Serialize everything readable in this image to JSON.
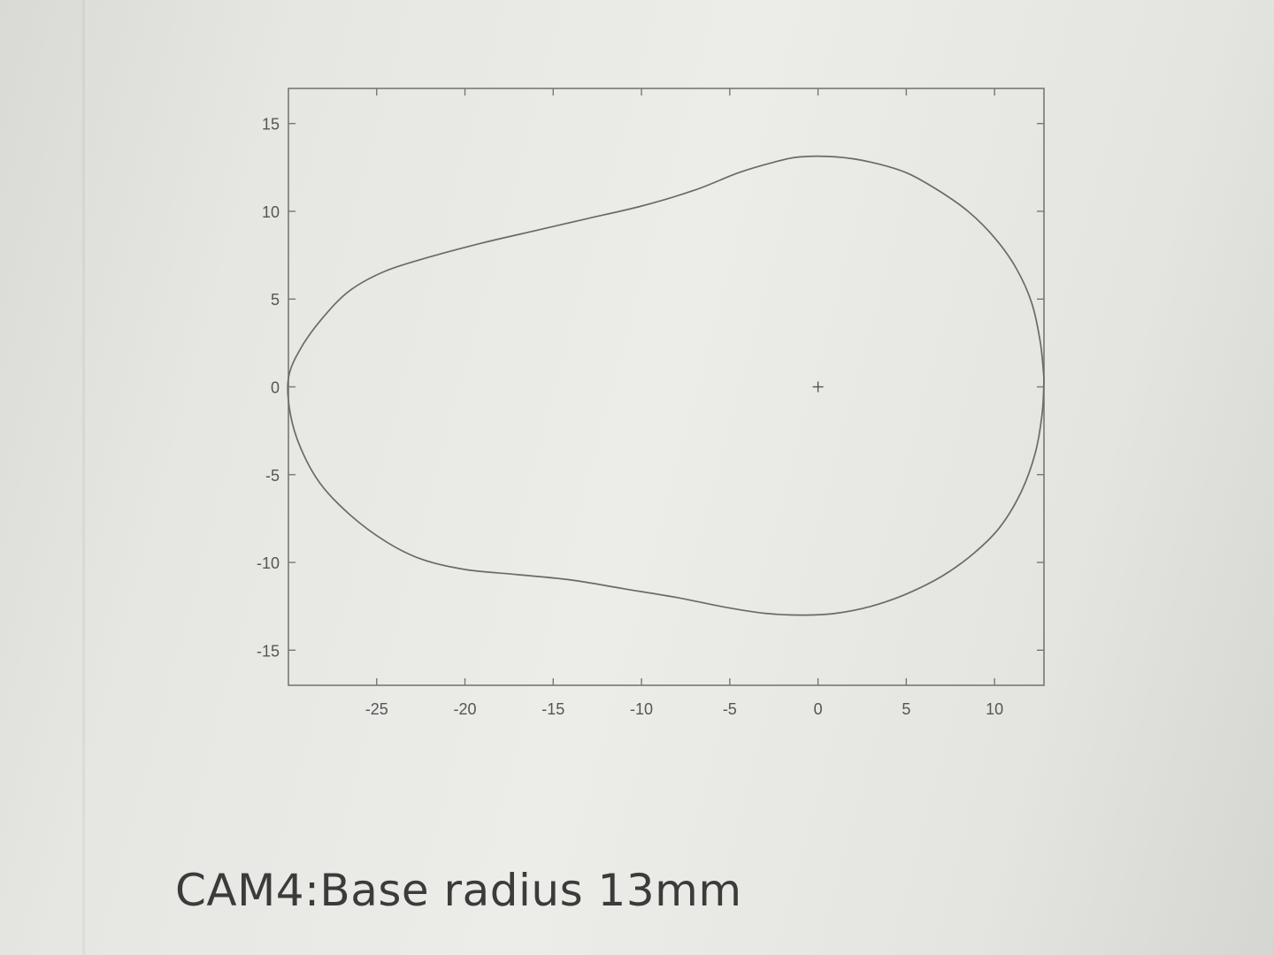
{
  "caption": "CAM4:Base radius 13mm",
  "chart_data": {
    "type": "line",
    "title": "",
    "xlabel": "",
    "ylabel": "",
    "xlim": [
      -30,
      12.8
    ],
    "ylim": [
      -17,
      17
    ],
    "xticks": [
      -25,
      -20,
      -15,
      -10,
      -5,
      0,
      5,
      10
    ],
    "yticks": [
      15,
      10,
      5,
      0,
      -5,
      -10,
      -15
    ],
    "grid": false,
    "center_marker": {
      "x": 0,
      "y": 0,
      "symbol": "+"
    },
    "series": [
      {
        "color": "#6a6a6a",
        "x": [
          12.8,
          12.6,
          12.1,
          11.2,
          10.0,
          8.5,
          6.8,
          5.0,
          3.0,
          1.0,
          -1.0,
          -2.5,
          -4.5,
          -7.0,
          -10.0,
          -13.0,
          -16.0,
          -19.0,
          -22.0,
          -24.5,
          -26.5,
          -28.0,
          -29.3,
          -30.0,
          -29.9,
          -29.3,
          -28.2,
          -26.5,
          -24.5,
          -22.5,
          -20.0,
          -17.0,
          -14.0,
          -11.0,
          -8.0,
          -5.0,
          -3.0,
          -1.0,
          1.0,
          3.0,
          5.0,
          7.0,
          8.8,
          10.3,
          11.5,
          12.3,
          12.7,
          12.8
        ],
        "y": [
          0.5,
          2.5,
          4.8,
          6.8,
          8.5,
          10.0,
          11.2,
          12.2,
          12.8,
          13.1,
          13.1,
          12.8,
          12.2,
          11.2,
          10.3,
          9.6,
          8.9,
          8.2,
          7.4,
          6.6,
          5.5,
          4.0,
          2.2,
          0.5,
          -1.5,
          -3.5,
          -5.5,
          -7.3,
          -8.8,
          -9.8,
          -10.4,
          -10.7,
          -11.0,
          -11.5,
          -12.0,
          -12.6,
          -12.9,
          -13.0,
          -12.9,
          -12.5,
          -11.8,
          -10.8,
          -9.5,
          -8.0,
          -6.0,
          -3.8,
          -1.5,
          0.5
        ]
      }
    ]
  }
}
